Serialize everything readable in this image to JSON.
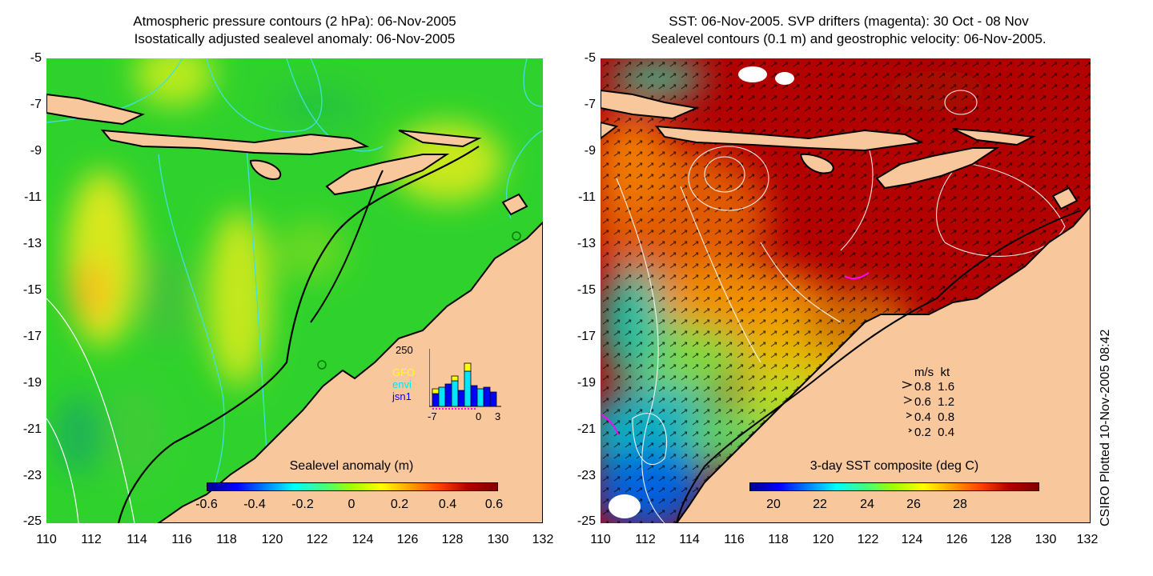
{
  "left_panel": {
    "title_line1": "Atmospheric pressure contours (2 hPa): 06-Nov-2005",
    "title_line2": "Isostatically adjusted sealevel anomaly: 06-Nov-2005",
    "colorbar_title": "Sealevel anomaly (m)",
    "colorbar_ticks": [
      "-0.6",
      "-0.4",
      "-0.2",
      "0",
      "0.2",
      "0.4",
      "0.6"
    ],
    "inset": {
      "ymax_label": "250",
      "legend": [
        "GFO",
        "envi",
        "jsn1"
      ],
      "legend_colors": [
        "#ffff00",
        "#00e5ff",
        "#0000ff"
      ],
      "x_labels": [
        "-7",
        "0",
        "3"
      ]
    }
  },
  "right_panel": {
    "title_line1": "SST: 06-Nov-2005. SVP drifters (magenta): 30 Oct - 08 Nov",
    "title_line2": "Sealevel contours (0.1 m) and geostrophic velocity: 06-Nov-2005.",
    "colorbar_title": "3-day SST composite (deg C)",
    "colorbar_ticks": [
      "20",
      "22",
      "24",
      "26",
      "28"
    ],
    "velocity_legend": {
      "header": "m/s  kt",
      "rows": [
        "0.8  1.6",
        "0.6  1.2",
        "0.4  0.8",
        "0.2  0.4"
      ]
    }
  },
  "axes": {
    "y_ticks": [
      "-5",
      "-7",
      "-9",
      "-11",
      "-13",
      "-15",
      "-17",
      "-19",
      "-21",
      "-23",
      "-25"
    ],
    "x_ticks": [
      "110",
      "112",
      "114",
      "116",
      "118",
      "120",
      "122",
      "124",
      "126",
      "128",
      "130",
      "132"
    ]
  },
  "credit": "CSIRO Plotted 10-Nov-2005 08:42",
  "colors": {
    "land": "#f9c79c",
    "sla_base": "#33d62a",
    "sst_warm": "#b30000"
  }
}
